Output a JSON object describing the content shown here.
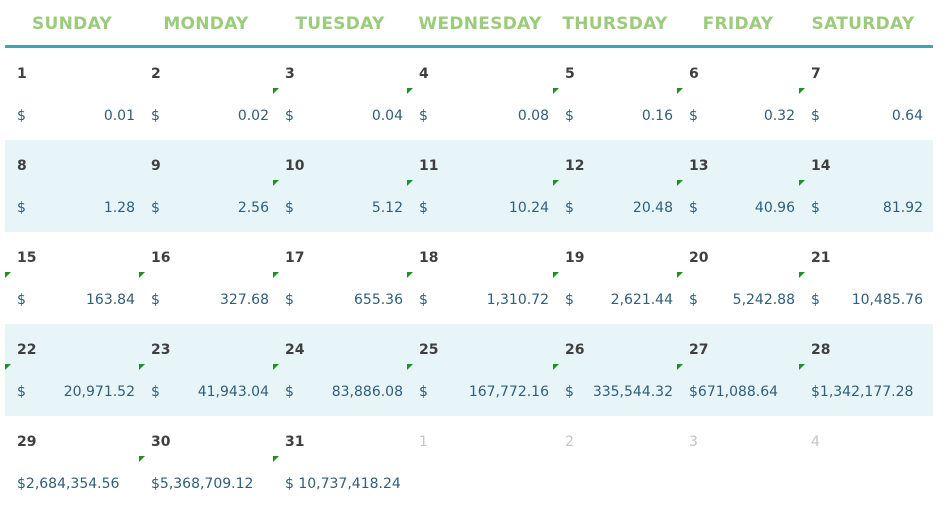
{
  "header": {
    "days": [
      "SUNDAY",
      "MONDAY",
      "TUESDAY",
      "WEDNESDAY",
      "THURSDAY",
      "FRIDAY",
      "SATURDAY"
    ]
  },
  "currency_symbol": "$",
  "colors": {
    "header_text": "#9ccb7b",
    "header_rule": "#3aa7b1",
    "band_fill": "#e8f5f8",
    "amount_text": "#2f5f7a",
    "day_number_text": "#3f3f3f",
    "outside_month_text": "#c4c4c4",
    "cell_marker": "#1f8f28"
  },
  "weeks": [
    {
      "shaded": false,
      "days": [
        {
          "day": "1",
          "dollar": "$",
          "amount": "0.01"
        },
        {
          "day": "2",
          "dollar": "$",
          "amount": "0.02"
        },
        {
          "day": "3",
          "dollar": "$",
          "amount": "0.04",
          "marker": true
        },
        {
          "day": "4",
          "dollar": "$",
          "amount": "0.08",
          "marker": true
        },
        {
          "day": "5",
          "dollar": "$",
          "amount": "0.16",
          "marker": true
        },
        {
          "day": "6",
          "dollar": "$",
          "amount": "0.32",
          "marker": true
        },
        {
          "day": "7",
          "dollar": "$",
          "amount": "0.64",
          "marker": true
        }
      ]
    },
    {
      "shaded": true,
      "days": [
        {
          "day": "8",
          "dollar": "$",
          "amount": "1.28"
        },
        {
          "day": "9",
          "dollar": "$",
          "amount": "2.56"
        },
        {
          "day": "10",
          "dollar": "$",
          "amount": "5.12",
          "marker": true
        },
        {
          "day": "11",
          "dollar": "$",
          "amount": "10.24",
          "marker": true
        },
        {
          "day": "12",
          "dollar": "$",
          "amount": "20.48",
          "marker": true
        },
        {
          "day": "13",
          "dollar": "$",
          "amount": "40.96",
          "marker": true
        },
        {
          "day": "14",
          "dollar": "$",
          "amount": "81.92",
          "marker": true
        }
      ]
    },
    {
      "shaded": false,
      "days": [
        {
          "day": "15",
          "dollar": "$",
          "amount": "163.84",
          "marker": true
        },
        {
          "day": "16",
          "dollar": "$",
          "amount": "327.68",
          "marker": true
        },
        {
          "day": "17",
          "dollar": "$",
          "amount": "655.36",
          "marker": true
        },
        {
          "day": "18",
          "dollar": "$",
          "amount": "1,310.72",
          "marker": true
        },
        {
          "day": "19",
          "dollar": "$",
          "amount": "2,621.44",
          "marker": true
        },
        {
          "day": "20",
          "dollar": "$",
          "amount": "5,242.88",
          "marker": true
        },
        {
          "day": "21",
          "dollar": "$",
          "amount": "10,485.76",
          "marker": true
        }
      ]
    },
    {
      "shaded": true,
      "days": [
        {
          "day": "22",
          "dollar": "$",
          "amount": "20,971.52",
          "marker": true
        },
        {
          "day": "23",
          "dollar": "$",
          "amount": "41,943.04",
          "marker": true
        },
        {
          "day": "24",
          "dollar": "$",
          "amount": "83,886.08",
          "marker": true
        },
        {
          "day": "25",
          "dollar": "$",
          "amount": "167,772.16",
          "marker": true
        },
        {
          "day": "26",
          "dollar": "$",
          "amount": "335,544.32",
          "marker": true
        },
        {
          "day": "27",
          "amount_full": "$671,088.64",
          "marker": true
        },
        {
          "day": "28",
          "amount_full": "$1,342,177.28",
          "marker": true
        }
      ]
    },
    {
      "shaded": false,
      "days": [
        {
          "day": "29",
          "amount_full": "$2,684,354.56"
        },
        {
          "day": "30",
          "amount_full": "$5,368,709.12",
          "marker": true
        },
        {
          "day": "31",
          "amount_full": "$ 10,737,418.24",
          "marker": true
        },
        {
          "day": "1",
          "faded": true
        },
        {
          "day": "2",
          "faded": true
        },
        {
          "day": "3",
          "faded": true
        },
        {
          "day": "4",
          "faded": true
        }
      ]
    }
  ]
}
